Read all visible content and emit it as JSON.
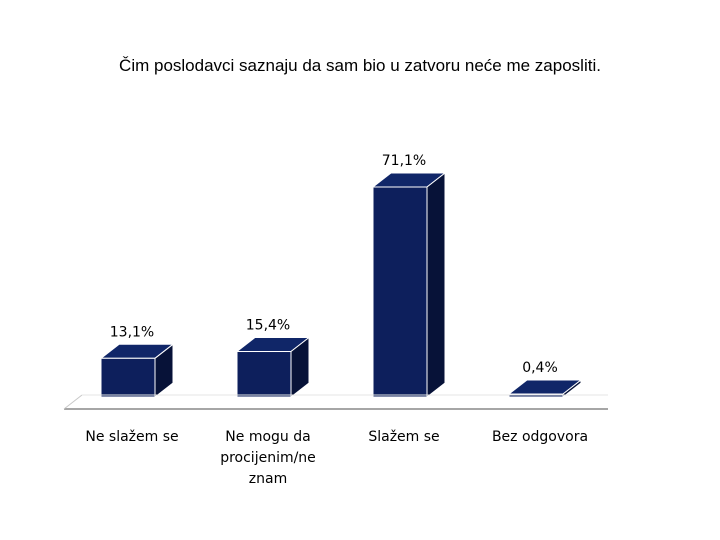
{
  "chart_data": {
    "type": "bar",
    "title": "Čim poslodavci saznaju da sam bio u zatvoru neće me zaposliti.",
    "categories": [
      [
        "Ne slažem se"
      ],
      [
        "Ne mogu da",
        "procijenim/ne",
        "znam"
      ],
      [
        "Slažem se"
      ],
      [
        "Bez odgovora"
      ]
    ],
    "values": [
      13.1,
      15.4,
      71.1,
      0.4
    ],
    "data_labels": [
      "13,1%",
      "15,4%",
      "71,1%",
      "0,4%"
    ],
    "ylim": [
      0,
      80
    ],
    "grid": false,
    "legend": "none",
    "colors": {
      "bar_front": "#0d1f5c",
      "bar_top": "#102668",
      "bar_side": "#071238",
      "bar_outline": "#ffffff",
      "axis": "#888888",
      "text": "#000000"
    }
  }
}
